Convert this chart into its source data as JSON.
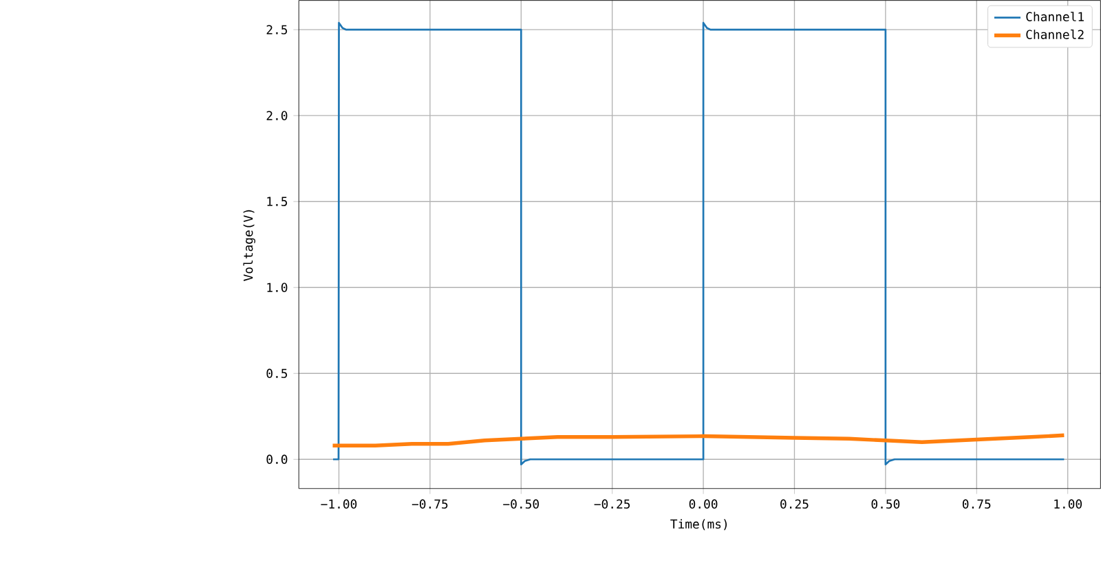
{
  "chart_data": {
    "type": "line",
    "xlabel": "Time(ms)",
    "ylabel": "Voltage(V)",
    "xlim": [
      -1.11,
      1.09
    ],
    "ylim": [
      -0.17,
      2.67
    ],
    "xticks": [
      {
        "value": -1,
        "label": "−1.00"
      },
      {
        "value": -0.75,
        "label": "−0.75"
      },
      {
        "value": -0.5,
        "label": "−0.50"
      },
      {
        "value": -0.25,
        "label": "−0.25"
      },
      {
        "value": 0,
        "label": "0.00"
      },
      {
        "value": 0.25,
        "label": "0.25"
      },
      {
        "value": 0.5,
        "label": "0.50"
      },
      {
        "value": 0.75,
        "label": "0.75"
      },
      {
        "value": 1,
        "label": "1.00"
      }
    ],
    "yticks": [
      {
        "value": 0,
        "label": "0.0"
      },
      {
        "value": 0.5,
        "label": "0.5"
      },
      {
        "value": 1,
        "label": "1.0"
      },
      {
        "value": 1.5,
        "label": "1.5"
      },
      {
        "value": 2,
        "label": "2.0"
      },
      {
        "value": 2.5,
        "label": "2.5"
      }
    ],
    "grid": true,
    "legend": "top right",
    "series": [
      {
        "name": "Channel1",
        "color": "#1f77b4",
        "x": [
          -1.016,
          -1.001,
          -1.0,
          -0.99,
          -0.98,
          -0.5,
          -0.5,
          -0.49,
          -0.475,
          0.0,
          0.0,
          0.01,
          0.02,
          0.5,
          0.5,
          0.51,
          0.525,
          0.99
        ],
        "values": [
          0.0,
          0.0,
          2.54,
          2.51,
          2.5,
          2.5,
          -0.03,
          -0.01,
          0.0,
          0.0,
          2.54,
          2.51,
          2.5,
          2.5,
          -0.03,
          -0.01,
          0.0,
          0.0
        ]
      },
      {
        "name": "Channel2",
        "color": "#ff7f0e",
        "x": [
          -1.017,
          -0.9,
          -0.8,
          -0.7,
          -0.6,
          -0.5,
          -0.4,
          -0.25,
          0.0,
          0.25,
          0.4,
          0.5,
          0.6,
          0.75,
          0.9,
          0.99
        ],
        "values": [
          0.08,
          0.08,
          0.09,
          0.09,
          0.11,
          0.12,
          0.13,
          0.13,
          0.135,
          0.125,
          0.12,
          0.11,
          0.1,
          0.115,
          0.13,
          0.14
        ]
      }
    ]
  }
}
